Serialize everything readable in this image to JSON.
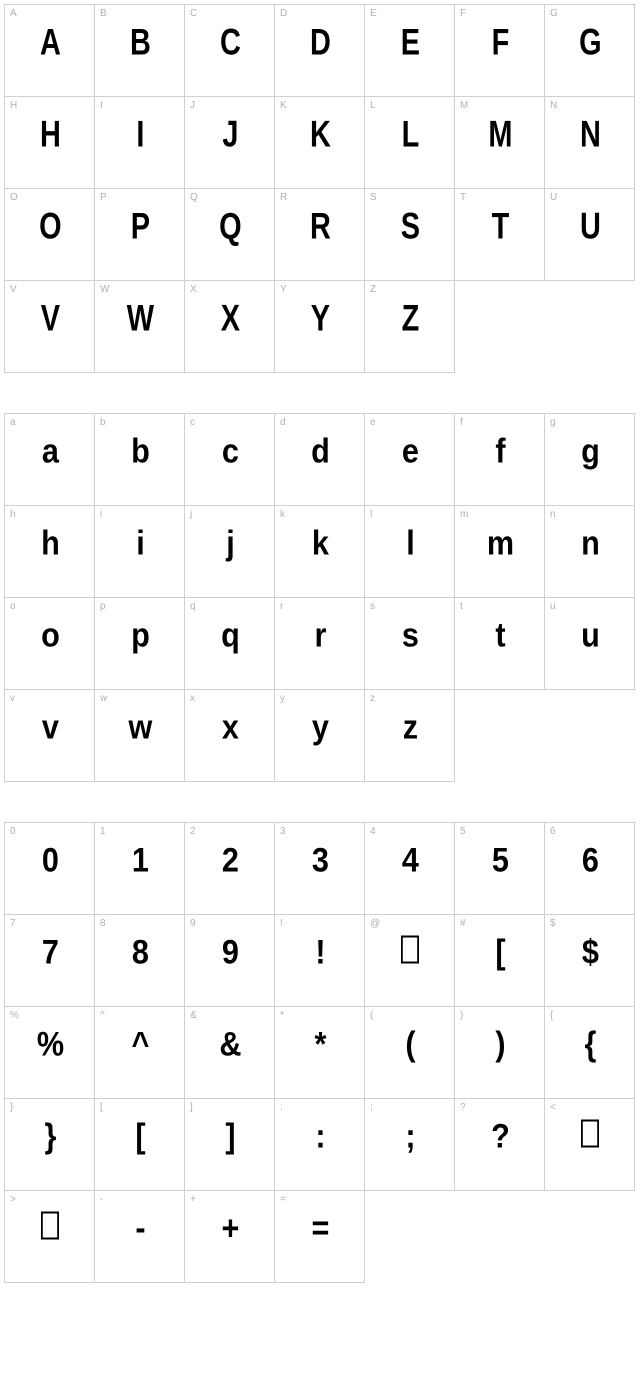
{
  "sections": [
    {
      "name": "uppercase",
      "cells": [
        {
          "label": "A",
          "glyph": "A"
        },
        {
          "label": "B",
          "glyph": "B"
        },
        {
          "label": "C",
          "glyph": "C"
        },
        {
          "label": "D",
          "glyph": "D"
        },
        {
          "label": "E",
          "glyph": "E"
        },
        {
          "label": "F",
          "glyph": "F"
        },
        {
          "label": "G",
          "glyph": "G"
        },
        {
          "label": "H",
          "glyph": "H"
        },
        {
          "label": "I",
          "glyph": "I"
        },
        {
          "label": "J",
          "glyph": "J"
        },
        {
          "label": "K",
          "glyph": "K"
        },
        {
          "label": "L",
          "glyph": "L"
        },
        {
          "label": "M",
          "glyph": "M"
        },
        {
          "label": "N",
          "glyph": "N"
        },
        {
          "label": "O",
          "glyph": "O"
        },
        {
          "label": "P",
          "glyph": "P"
        },
        {
          "label": "Q",
          "glyph": "Q"
        },
        {
          "label": "R",
          "glyph": "R"
        },
        {
          "label": "S",
          "glyph": "S"
        },
        {
          "label": "T",
          "glyph": "T"
        },
        {
          "label": "U",
          "glyph": "U"
        },
        {
          "label": "V",
          "glyph": "V"
        },
        {
          "label": "W",
          "glyph": "W"
        },
        {
          "label": "X",
          "glyph": "X"
        },
        {
          "label": "Y",
          "glyph": "Y"
        },
        {
          "label": "Z",
          "glyph": "Z"
        }
      ],
      "glyph_class": "glyph-caps"
    },
    {
      "name": "lowercase",
      "cells": [
        {
          "label": "a",
          "glyph": "a"
        },
        {
          "label": "b",
          "glyph": "b"
        },
        {
          "label": "c",
          "glyph": "c"
        },
        {
          "label": "d",
          "glyph": "d"
        },
        {
          "label": "e",
          "glyph": "e"
        },
        {
          "label": "f",
          "glyph": "f"
        },
        {
          "label": "g",
          "glyph": "g"
        },
        {
          "label": "h",
          "glyph": "h"
        },
        {
          "label": "i",
          "glyph": "i"
        },
        {
          "label": "j",
          "glyph": "j"
        },
        {
          "label": "k",
          "glyph": "k"
        },
        {
          "label": "l",
          "glyph": "l"
        },
        {
          "label": "m",
          "glyph": "m"
        },
        {
          "label": "n",
          "glyph": "n"
        },
        {
          "label": "o",
          "glyph": "o"
        },
        {
          "label": "p",
          "glyph": "p"
        },
        {
          "label": "q",
          "glyph": "q"
        },
        {
          "label": "r",
          "glyph": "r"
        },
        {
          "label": "s",
          "glyph": "s"
        },
        {
          "label": "t",
          "glyph": "t"
        },
        {
          "label": "u",
          "glyph": "u"
        },
        {
          "label": "v",
          "glyph": "v"
        },
        {
          "label": "w",
          "glyph": "w"
        },
        {
          "label": "x",
          "glyph": "x"
        },
        {
          "label": "y",
          "glyph": "y"
        },
        {
          "label": "z",
          "glyph": "z"
        }
      ],
      "glyph_class": "glyph-lower"
    },
    {
      "name": "numbers-symbols",
      "cells": [
        {
          "label": "0",
          "glyph": "0"
        },
        {
          "label": "1",
          "glyph": "1"
        },
        {
          "label": "2",
          "glyph": "2"
        },
        {
          "label": "3",
          "glyph": "3"
        },
        {
          "label": "4",
          "glyph": "4"
        },
        {
          "label": "5",
          "glyph": "5"
        },
        {
          "label": "6",
          "glyph": "6"
        },
        {
          "label": "7",
          "glyph": "7"
        },
        {
          "label": "8",
          "glyph": "8"
        },
        {
          "label": "9",
          "glyph": "9"
        },
        {
          "label": "!",
          "glyph": "!"
        },
        {
          "label": "@",
          "glyph": "",
          "missing": true
        },
        {
          "label": "#",
          "glyph": "["
        },
        {
          "label": "$",
          "glyph": "$"
        },
        {
          "label": "%",
          "glyph": "%"
        },
        {
          "label": "^",
          "glyph": "^"
        },
        {
          "label": "&",
          "glyph": "&"
        },
        {
          "label": "*",
          "glyph": "*"
        },
        {
          "label": "(",
          "glyph": "("
        },
        {
          "label": ")",
          "glyph": ")"
        },
        {
          "label": "{",
          "glyph": "{"
        },
        {
          "label": "}",
          "glyph": "}"
        },
        {
          "label": "[",
          "glyph": "["
        },
        {
          "label": "]",
          "glyph": "]"
        },
        {
          "label": ":",
          "glyph": ":"
        },
        {
          "label": ";",
          "glyph": ";"
        },
        {
          "label": "?",
          "glyph": "?"
        },
        {
          "label": "<",
          "glyph": "",
          "missing": true
        },
        {
          "label": ">",
          "glyph": "",
          "missing": true
        },
        {
          "label": "-",
          "glyph": "-"
        },
        {
          "label": "+",
          "glyph": "+"
        },
        {
          "label": "=",
          "glyph": "="
        }
      ],
      "glyph_class": "glyph-sym"
    }
  ],
  "colors": {
    "border": "#d0d0d0",
    "label": "#b0b0b0",
    "glyph": "#000000",
    "background": "#ffffff"
  },
  "cell_size": {
    "width": 90,
    "height": 92
  },
  "glyph_fontsize": 34,
  "label_fontsize": 10
}
